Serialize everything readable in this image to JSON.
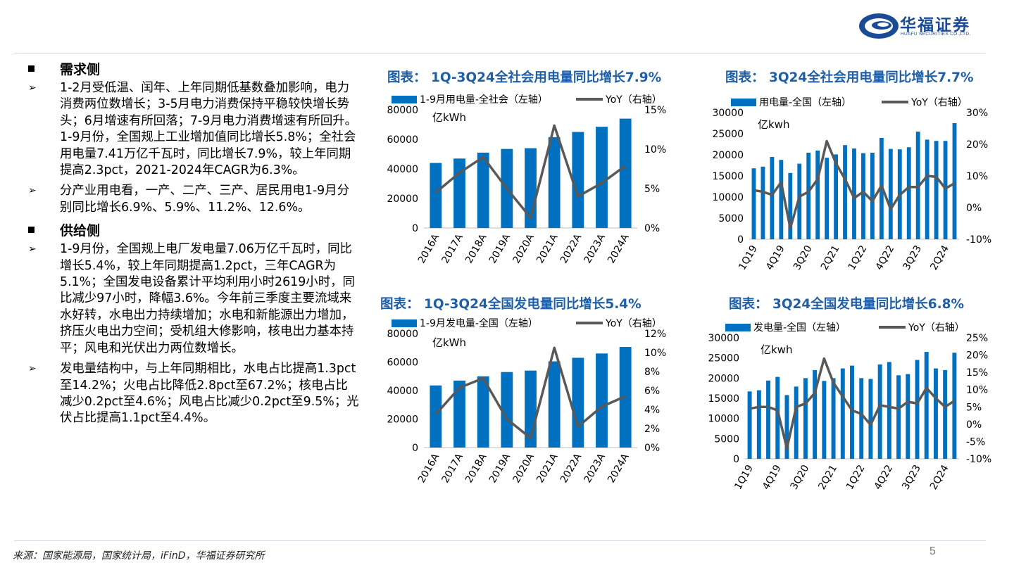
{
  "logo": {
    "name": "华福证券",
    "subtitle": "HUAFU SECURITIES CO.,LTD."
  },
  "sections": [
    {
      "title": "需求侧",
      "bullets": [
        "1-2月受低温、闰年、上年同期低基数叠加影响，电力消费两位数增长；3-5月电力消费保持平稳较快增长势头；6月增速有所回落；7-9月电力消费增速有所回升。1-9月份，全国规上工业增加值同比增长5.8%；全社会用电量7.41万亿千瓦时，同比增长7.9%，较上年同期提高2.3pct，2021-2024年CAGR为6.3%。",
        "分产业用电看，一产、二产、三产、居民用电1-9月分别同比增长6.9%、5.9%、11.2%、12.6%。"
      ]
    },
    {
      "title": "供给侧",
      "bullets": [
        "1-9月份，全国规上电厂发电量7.06万亿千瓦时，同比增长5.4%，较上年同期提高1.2pct，三年CAGR为5.1%；全国发电设备累计平均利用小时2619小时，同比减少97小时，降幅3.6%。今年前三季度主要流域来水好转，水电出力持续增加；水电和新能源出力增加，挤压火电出力空间；受机组大修影响，核电出力基本持平；风电和光伏出力两位数增长。",
        "发电量结构中，与上年同期相比，水电占比提高1.3pct至14.2%；火电占比降低2.8pct至67.2%；核电占比减少0.2pct至4.6%；风电占比减少0.2pct至9.5%；光伏占比提高1.1pct至4.4%。"
      ]
    }
  ],
  "colors": {
    "bar": "#0070c0",
    "line": "#595959",
    "title": "#1f5fa8"
  },
  "chart_data": [
    {
      "type": "bar",
      "title": "图表： 1Q-3Q24全社会用电量同比增长7.9%",
      "unit_label": "亿kWh",
      "categories": [
        "2016A",
        "2017A",
        "2018A",
        "2019A",
        "2020A",
        "2021A",
        "2022A",
        "2023A",
        "2024A"
      ],
      "series": [
        {
          "name": "1-9月用电量-全社会（左轴）",
          "type": "bar",
          "axis": "left",
          "values": [
            44000,
            47000,
            51000,
            53500,
            54000,
            61500,
            65000,
            68500,
            74000
          ]
        },
        {
          "name": "YoY（右轴）",
          "type": "line",
          "axis": "right",
          "values": [
            0.045,
            0.07,
            0.09,
            0.05,
            0.013,
            0.13,
            0.04,
            0.057,
            0.079
          ]
        }
      ],
      "ylim_left": [
        0,
        80000
      ],
      "ylim_right": [
        0,
        0.15
      ],
      "yticks_left": [
        "0",
        "20000",
        "40000",
        "60000",
        "80000"
      ],
      "yticks_right": [
        "0%",
        "5%",
        "10%",
        "15%"
      ],
      "legend": "top"
    },
    {
      "type": "bar",
      "title": "图表： 3Q24全社会用电量同比增长7.7%",
      "unit_label": "亿kwh",
      "categories": [
        "1Q19",
        "2Q19",
        "3Q19",
        "4Q19",
        "1Q20",
        "2Q20",
        "3Q20",
        "4Q20",
        "1Q21",
        "2Q21",
        "3Q21",
        "4Q21",
        "1Q22",
        "2Q22",
        "3Q22",
        "4Q22",
        "1Q23",
        "2Q23",
        "3Q23",
        "4Q23",
        "1Q24",
        "2Q24",
        "3Q24"
      ],
      "xtick_labels": [
        "1Q19",
        "4Q19",
        "3Q20",
        "2Q21",
        "1Q22",
        "4Q22",
        "3Q23",
        "2Q24"
      ],
      "series": [
        {
          "name": "用电量-全国（左轴）",
          "type": "bar",
          "axis": "left",
          "values": [
            16800,
            17200,
            19500,
            18800,
            15700,
            17900,
            20500,
            21000,
            19300,
            20100,
            22300,
            21500,
            20400,
            20500,
            24000,
            21400,
            21300,
            21800,
            25500,
            23600,
            23300,
            23300,
            27500
          ]
        },
        {
          "name": "YoY（右轴）",
          "type": "line",
          "axis": "right",
          "values": [
            0.055,
            0.05,
            0.04,
            0.08,
            -0.065,
            0.035,
            0.05,
            0.09,
            0.21,
            0.14,
            0.09,
            0.03,
            0.05,
            0.02,
            0.07,
            -0.005,
            0.04,
            0.065,
            0.065,
            0.1,
            0.097,
            0.06,
            0.077
          ]
        }
      ],
      "ylim_left": [
        0,
        30000
      ],
      "ylim_right": [
        -0.1,
        0.3
      ],
      "yticks_left": [
        "0",
        "5000",
        "10000",
        "15000",
        "20000",
        "25000",
        "30000"
      ],
      "yticks_right": [
        "-10%",
        "0%",
        "10%",
        "20%",
        "30%"
      ],
      "legend": "top"
    },
    {
      "type": "bar",
      "title": "图表： 1Q-3Q24全国发电量同比增长5.4%",
      "unit_label": "亿kWh",
      "categories": [
        "2016A",
        "2017A",
        "2018A",
        "2019A",
        "2020A",
        "2021A",
        "2022A",
        "2023A",
        "2024A"
      ],
      "series": [
        {
          "name": "1-9月发电量-全国（左轴）",
          "type": "bar",
          "axis": "left",
          "values": [
            43600,
            47000,
            50000,
            53000,
            54000,
            60500,
            63000,
            66000,
            70600
          ]
        },
        {
          "name": "YoY（右轴）",
          "type": "line",
          "axis": "right",
          "values": [
            0.035,
            0.063,
            0.073,
            0.03,
            0.01,
            0.105,
            0.022,
            0.043,
            0.054
          ]
        }
      ],
      "ylim_left": [
        0,
        80000
      ],
      "ylim_right": [
        0,
        0.12
      ],
      "yticks_left": [
        "0",
        "20000",
        "40000",
        "60000",
        "80000"
      ],
      "yticks_right": [
        "0%",
        "2%",
        "4%",
        "6%",
        "8%",
        "10%",
        "12%"
      ],
      "legend": "top"
    },
    {
      "type": "bar",
      "title": "图表： 3Q24全国发电量同比增长6.8%",
      "unit_label": "亿kwh",
      "categories": [
        "1Q19",
        "2Q19",
        "3Q19",
        "4Q19",
        "1Q20",
        "2Q20",
        "3Q20",
        "4Q20",
        "1Q21",
        "2Q21",
        "3Q21",
        "4Q21",
        "1Q22",
        "2Q22",
        "3Q22",
        "4Q22",
        "1Q23",
        "2Q23",
        "3Q23",
        "4Q23",
        "1Q24",
        "2Q24",
        "3Q24"
      ],
      "xtick_labels": [
        "1Q19",
        "4Q19",
        "3Q20",
        "2Q21",
        "1Q22",
        "4Q22",
        "3Q23",
        "2Q24"
      ],
      "series": [
        {
          "name": "发电量-全国（左轴）",
          "type": "bar",
          "axis": "left",
          "values": [
            16700,
            17000,
            19400,
            20300,
            15800,
            17900,
            20000,
            22000,
            19300,
            20000,
            22400,
            23100,
            20000,
            19800,
            23400,
            24000,
            20700,
            21000,
            24500,
            26500,
            22400,
            22000,
            26300
          ]
        },
        {
          "name": "YoY（右轴）",
          "type": "line",
          "axis": "right",
          "values": [
            0.045,
            0.05,
            0.05,
            0.04,
            -0.07,
            0.05,
            0.06,
            0.09,
            0.19,
            0.12,
            0.08,
            0.04,
            0.03,
            -0.002,
            0.055,
            0.05,
            0.045,
            0.065,
            0.06,
            0.105,
            0.075,
            0.05,
            0.068
          ]
        }
      ],
      "ylim_left": [
        0,
        30000
      ],
      "ylim_right": [
        -0.1,
        0.25
      ],
      "yticks_left": [
        "0",
        "5000",
        "10000",
        "15000",
        "20000",
        "25000",
        "30000"
      ],
      "yticks_right": [
        "-10%",
        "-5%",
        "0%",
        "5%",
        "10%",
        "15%",
        "20%",
        "25%"
      ],
      "legend": "top"
    }
  ],
  "source": "来源：国家能源局，国家统计局，iFinD，华福证券研究所",
  "page_number": "5"
}
